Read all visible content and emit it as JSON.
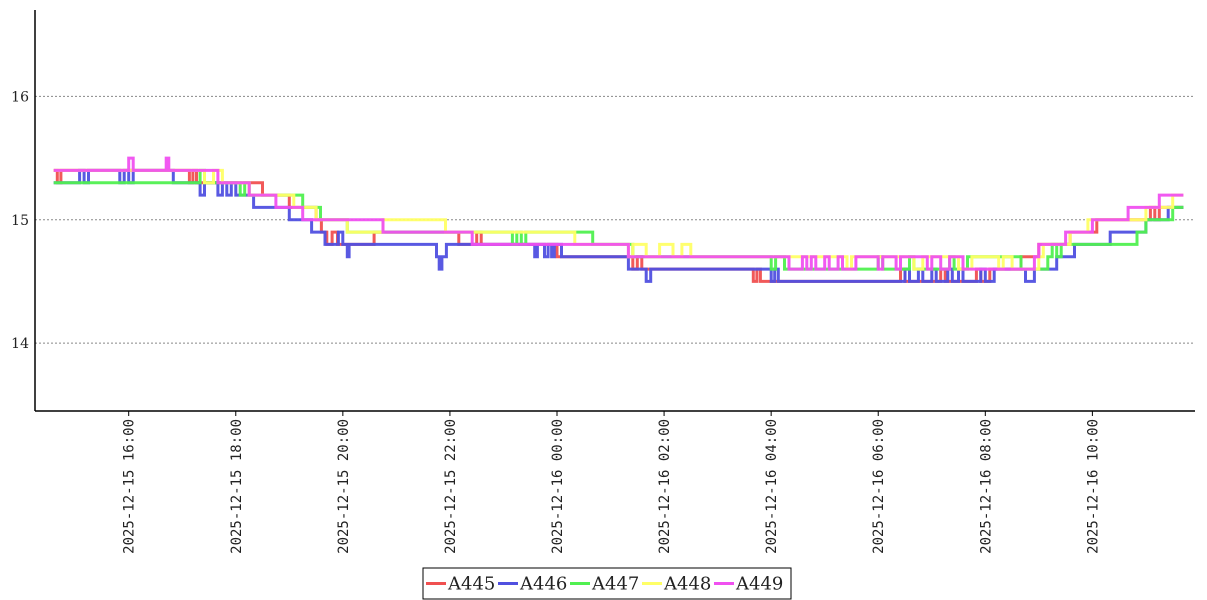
{
  "chart_data": {
    "type": "line",
    "title": "",
    "xlabel": "",
    "ylabel": "",
    "ylim": [
      13.45,
      16.7
    ],
    "xlim": [
      "2025-12-15 14:15",
      "2025-12-16 11:55"
    ],
    "yticks": [
      14,
      15,
      16
    ],
    "y_tick_labels": [
      "14",
      "15",
      "16"
    ],
    "xticks": [
      "2025-12-15 16:00",
      "2025-12-15 18:00",
      "2025-12-15 20:00",
      "2025-12-15 22:00",
      "2025-12-16 00:00",
      "2025-12-16 02:00",
      "2025-12-16 04:00",
      "2025-12-16 06:00",
      "2025-12-16 08:00",
      "2025-12-16 10:00"
    ],
    "x_tick_labels": [
      "2025-12-15 16:00",
      "2025-12-15 18:00",
      "2025-12-15 20:00",
      "2025-12-15 22:00",
      "2025-12-16 00:00",
      "2025-12-16 02:00",
      "2025-12-16 04:00",
      "2025-12-16 06:00",
      "2025-12-16 08:00",
      "2025-12-16 10:00"
    ],
    "grid": "horizontal dotted",
    "legend_position": "bottom-center",
    "line_style": "step",
    "series": [
      {
        "name": "A445",
        "color": "#f05050",
        "points": [
          [
            "2025-12-15 14:36",
            15.4
          ],
          [
            "2025-12-15 14:40",
            15.3
          ],
          [
            "2025-12-15 14:44",
            15.4
          ],
          [
            "2025-12-15 17:08",
            15.3
          ],
          [
            "2025-12-15 17:12",
            15.4
          ],
          [
            "2025-12-15 17:16",
            15.3
          ],
          [
            "2025-12-15 18:30",
            15.2
          ],
          [
            "2025-12-15 19:00",
            15.1
          ],
          [
            "2025-12-15 19:30",
            15.0
          ],
          [
            "2025-12-15 19:36",
            14.9
          ],
          [
            "2025-12-15 19:42",
            14.8
          ],
          [
            "2025-12-15 19:48",
            14.9
          ],
          [
            "2025-12-15 19:54",
            14.8
          ],
          [
            "2025-12-15 20:35",
            14.9
          ],
          [
            "2025-12-15 22:10",
            14.8
          ],
          [
            "2025-12-15 22:30",
            14.9
          ],
          [
            "2025-12-15 22:35",
            14.8
          ],
          [
            "2025-12-16 00:00",
            14.7
          ],
          [
            "2025-12-16 01:25",
            14.6
          ],
          [
            "2025-12-16 01:30",
            14.7
          ],
          [
            "2025-12-16 01:35",
            14.6
          ],
          [
            "2025-12-16 03:40",
            14.5
          ],
          [
            "2025-12-16 03:44",
            14.6
          ],
          [
            "2025-12-16 03:48",
            14.5
          ],
          [
            "2025-12-16 06:25",
            14.6
          ],
          [
            "2025-12-16 06:30",
            14.5
          ],
          [
            "2025-12-16 07:10",
            14.6
          ],
          [
            "2025-12-16 07:15",
            14.5
          ],
          [
            "2025-12-16 07:50",
            14.6
          ],
          [
            "2025-12-16 07:55",
            14.5
          ],
          [
            "2025-12-16 08:05",
            14.6
          ],
          [
            "2025-12-16 08:40",
            14.7
          ],
          [
            "2025-12-16 09:00",
            14.8
          ],
          [
            "2025-12-16 09:35",
            14.9
          ],
          [
            "2025-12-16 10:05",
            15.0
          ],
          [
            "2025-12-16 11:05",
            15.1
          ],
          [
            "2025-12-16 11:10",
            15.0
          ],
          [
            "2025-12-16 11:15",
            15.1
          ],
          [
            "2025-12-16 11:42",
            15.1
          ]
        ]
      },
      {
        "name": "A446",
        "color": "#5050e0",
        "points": [
          [
            "2025-12-15 14:36",
            15.3
          ],
          [
            "2025-12-15 15:05",
            15.4
          ],
          [
            "2025-12-15 15:10",
            15.3
          ],
          [
            "2025-12-15 15:15",
            15.4
          ],
          [
            "2025-12-15 15:50",
            15.3
          ],
          [
            "2025-12-15 15:55",
            15.4
          ],
          [
            "2025-12-15 16:00",
            15.3
          ],
          [
            "2025-12-15 16:05",
            15.4
          ],
          [
            "2025-12-15 16:50",
            15.3
          ],
          [
            "2025-12-15 17:20",
            15.2
          ],
          [
            "2025-12-15 17:25",
            15.3
          ],
          [
            "2025-12-15 17:40",
            15.2
          ],
          [
            "2025-12-15 17:45",
            15.3
          ],
          [
            "2025-12-15 17:50",
            15.2
          ],
          [
            "2025-12-15 17:55",
            15.3
          ],
          [
            "2025-12-15 18:00",
            15.2
          ],
          [
            "2025-12-15 18:20",
            15.1
          ],
          [
            "2025-12-15 18:40",
            15.1
          ],
          [
            "2025-12-15 19:00",
            15.0
          ],
          [
            "2025-12-15 19:25",
            14.9
          ],
          [
            "2025-12-15 19:40",
            14.8
          ],
          [
            "2025-12-15 19:55",
            14.9
          ],
          [
            "2025-12-15 20:00",
            14.8
          ],
          [
            "2025-12-15 20:05",
            14.7
          ],
          [
            "2025-12-15 20:07",
            14.8
          ],
          [
            "2025-12-15 21:40",
            14.8
          ],
          [
            "2025-12-15 21:45",
            14.7
          ],
          [
            "2025-12-15 21:48",
            14.6
          ],
          [
            "2025-12-15 21:51",
            14.7
          ],
          [
            "2025-12-15 21:56",
            14.8
          ],
          [
            "2025-12-15 23:35",
            14.7
          ],
          [
            "2025-12-15 23:38",
            14.8
          ],
          [
            "2025-12-15 23:46",
            14.7
          ],
          [
            "2025-12-15 23:50",
            14.8
          ],
          [
            "2025-12-15 23:54",
            14.7
          ],
          [
            "2025-12-15 23:57",
            14.8
          ],
          [
            "2025-12-16 00:05",
            14.7
          ],
          [
            "2025-12-16 01:20",
            14.6
          ],
          [
            "2025-12-16 01:40",
            14.5
          ],
          [
            "2025-12-16 01:45",
            14.6
          ],
          [
            "2025-12-16 04:00",
            14.5
          ],
          [
            "2025-12-16 04:04",
            14.6
          ],
          [
            "2025-12-16 04:08",
            14.5
          ],
          [
            "2025-12-16 06:30",
            14.6
          ],
          [
            "2025-12-16 06:35",
            14.5
          ],
          [
            "2025-12-16 06:45",
            14.6
          ],
          [
            "2025-12-16 06:50",
            14.5
          ],
          [
            "2025-12-16 07:00",
            14.6
          ],
          [
            "2025-12-16 07:05",
            14.5
          ],
          [
            "2025-12-16 07:18",
            14.6
          ],
          [
            "2025-12-16 07:23",
            14.5
          ],
          [
            "2025-12-16 07:30",
            14.6
          ],
          [
            "2025-12-16 07:35",
            14.5
          ],
          [
            "2025-12-16 07:55",
            14.6
          ],
          [
            "2025-12-16 08:00",
            14.5
          ],
          [
            "2025-12-16 08:10",
            14.6
          ],
          [
            "2025-12-16 08:45",
            14.5
          ],
          [
            "2025-12-16 08:55",
            14.6
          ],
          [
            "2025-12-16 09:20",
            14.7
          ],
          [
            "2025-12-16 09:40",
            14.8
          ],
          [
            "2025-12-16 10:20",
            14.9
          ],
          [
            "2025-12-16 11:00",
            15.0
          ],
          [
            "2025-12-16 11:25",
            15.1
          ],
          [
            "2025-12-16 11:42",
            15.1
          ]
        ]
      },
      {
        "name": "A447",
        "color": "#50f050",
        "points": [
          [
            "2025-12-15 14:36",
            15.3
          ],
          [
            "2025-12-15 17:15",
            15.3
          ],
          [
            "2025-12-15 17:20",
            15.4
          ],
          [
            "2025-12-15 17:25",
            15.3
          ],
          [
            "2025-12-15 18:05",
            15.2
          ],
          [
            "2025-12-15 18:10",
            15.3
          ],
          [
            "2025-12-15 18:15",
            15.2
          ],
          [
            "2025-12-15 19:15",
            15.1
          ],
          [
            "2025-12-15 19:35",
            15.0
          ],
          [
            "2025-12-15 20:05",
            14.9
          ],
          [
            "2025-12-15 23:10",
            14.8
          ],
          [
            "2025-12-15 23:15",
            14.9
          ],
          [
            "2025-12-15 23:20",
            14.8
          ],
          [
            "2025-12-15 23:25",
            14.9
          ],
          [
            "2025-12-16 00:40",
            14.8
          ],
          [
            "2025-12-16 01:25",
            14.7
          ],
          [
            "2025-12-16 04:00",
            14.6
          ],
          [
            "2025-12-16 04:05",
            14.7
          ],
          [
            "2025-12-16 04:15",
            14.6
          ],
          [
            "2025-12-16 06:00",
            14.7
          ],
          [
            "2025-12-16 06:05",
            14.6
          ],
          [
            "2025-12-16 06:35",
            14.7
          ],
          [
            "2025-12-16 06:40",
            14.6
          ],
          [
            "2025-12-16 07:20",
            14.7
          ],
          [
            "2025-12-16 07:25",
            14.6
          ],
          [
            "2025-12-16 07:40",
            14.7
          ],
          [
            "2025-12-16 08:40",
            14.6
          ],
          [
            "2025-12-16 09:10",
            14.7
          ],
          [
            "2025-12-16 09:15",
            14.8
          ],
          [
            "2025-12-16 09:20",
            14.7
          ],
          [
            "2025-12-16 09:25",
            14.8
          ],
          [
            "2025-12-16 10:50",
            14.9
          ],
          [
            "2025-12-16 11:00",
            15.0
          ],
          [
            "2025-12-16 11:30",
            15.1
          ],
          [
            "2025-12-16 11:42",
            15.1
          ]
        ]
      },
      {
        "name": "A448",
        "color": "#ffff66",
        "points": [
          [
            "2025-12-15 14:36",
            15.4
          ],
          [
            "2025-12-15 17:25",
            15.3
          ],
          [
            "2025-12-15 17:35",
            15.4
          ],
          [
            "2025-12-15 17:45",
            15.3
          ],
          [
            "2025-12-15 18:05",
            15.3
          ],
          [
            "2025-12-15 18:15",
            15.2
          ],
          [
            "2025-12-15 19:05",
            15.1
          ],
          [
            "2025-12-15 19:30",
            15.0
          ],
          [
            "2025-12-15 20:05",
            14.9
          ],
          [
            "2025-12-15 20:45",
            15.0
          ],
          [
            "2025-12-15 21:55",
            14.9
          ],
          [
            "2025-12-15 23:30",
            14.9
          ],
          [
            "2025-12-16 00:20",
            14.8
          ],
          [
            "2025-12-16 01:20",
            14.7
          ],
          [
            "2025-12-16 01:25",
            14.8
          ],
          [
            "2025-12-16 01:40",
            14.7
          ],
          [
            "2025-12-16 01:55",
            14.8
          ],
          [
            "2025-12-16 02:10",
            14.7
          ],
          [
            "2025-12-16 02:20",
            14.8
          ],
          [
            "2025-12-16 02:30",
            14.7
          ],
          [
            "2025-12-16 04:20",
            14.7
          ],
          [
            "2025-12-16 05:25",
            14.6
          ],
          [
            "2025-12-16 05:30",
            14.7
          ],
          [
            "2025-12-16 06:40",
            14.6
          ],
          [
            "2025-12-16 06:50",
            14.7
          ],
          [
            "2025-12-16 07:30",
            14.6
          ],
          [
            "2025-12-16 07:45",
            14.7
          ],
          [
            "2025-12-16 08:15",
            14.6
          ],
          [
            "2025-12-16 08:20",
            14.7
          ],
          [
            "2025-12-16 08:30",
            14.6
          ],
          [
            "2025-12-16 09:00",
            14.7
          ],
          [
            "2025-12-16 09:05",
            14.8
          ],
          [
            "2025-12-16 09:35",
            14.9
          ],
          [
            "2025-12-16 09:55",
            15.0
          ],
          [
            "2025-12-16 10:35",
            15.0
          ],
          [
            "2025-12-16 11:00",
            15.1
          ],
          [
            "2025-12-16 11:30",
            15.2
          ],
          [
            "2025-12-16 11:42",
            15.2
          ]
        ]
      },
      {
        "name": "A449",
        "color": "#f050f0",
        "points": [
          [
            "2025-12-15 14:36",
            15.4
          ],
          [
            "2025-12-15 15:55",
            15.4
          ],
          [
            "2025-12-15 16:00",
            15.5
          ],
          [
            "2025-12-15 16:05",
            15.4
          ],
          [
            "2025-12-15 16:40",
            15.4
          ],
          [
            "2025-12-15 16:42",
            15.5
          ],
          [
            "2025-12-15 16:45",
            15.4
          ],
          [
            "2025-12-15 17:40",
            15.3
          ],
          [
            "2025-12-15 18:00",
            15.3
          ],
          [
            "2025-12-15 18:15",
            15.2
          ],
          [
            "2025-12-15 18:45",
            15.1
          ],
          [
            "2025-12-15 19:15",
            15.0
          ],
          [
            "2025-12-15 20:40",
            15.0
          ],
          [
            "2025-12-15 20:45",
            14.9
          ],
          [
            "2025-12-15 21:05",
            14.9
          ],
          [
            "2025-12-15 22:15",
            14.9
          ],
          [
            "2025-12-15 22:25",
            14.8
          ],
          [
            "2025-12-15 23:40",
            14.8
          ],
          [
            "2025-12-16 01:20",
            14.7
          ],
          [
            "2025-12-16 02:30",
            14.7
          ],
          [
            "2025-12-16 04:05",
            14.7
          ],
          [
            "2025-12-16 04:20",
            14.6
          ],
          [
            "2025-12-16 04:35",
            14.7
          ],
          [
            "2025-12-16 04:40",
            14.6
          ],
          [
            "2025-12-16 04:45",
            14.7
          ],
          [
            "2025-12-16 04:50",
            14.6
          ],
          [
            "2025-12-16 05:00",
            14.7
          ],
          [
            "2025-12-16 05:05",
            14.6
          ],
          [
            "2025-12-16 05:15",
            14.7
          ],
          [
            "2025-12-16 05:20",
            14.6
          ],
          [
            "2025-12-16 05:35",
            14.7
          ],
          [
            "2025-12-16 06:00",
            14.6
          ],
          [
            "2025-12-16 06:05",
            14.7
          ],
          [
            "2025-12-16 06:20",
            14.6
          ],
          [
            "2025-12-16 06:25",
            14.7
          ],
          [
            "2025-12-16 06:55",
            14.6
          ],
          [
            "2025-12-16 07:00",
            14.7
          ],
          [
            "2025-12-16 07:10",
            14.6
          ],
          [
            "2025-12-16 07:20",
            14.7
          ],
          [
            "2025-12-16 07:35",
            14.6
          ],
          [
            "2025-12-16 08:10",
            14.6
          ],
          [
            "2025-12-16 08:55",
            14.7
          ],
          [
            "2025-12-16 09:00",
            14.8
          ],
          [
            "2025-12-16 09:20",
            14.8
          ],
          [
            "2025-12-16 09:30",
            14.9
          ],
          [
            "2025-12-16 09:50",
            14.9
          ],
          [
            "2025-12-16 10:00",
            15.0
          ],
          [
            "2025-12-16 10:20",
            15.0
          ],
          [
            "2025-12-16 10:40",
            15.1
          ],
          [
            "2025-12-16 11:15",
            15.2
          ],
          [
            "2025-12-16 11:42",
            15.2
          ]
        ]
      }
    ]
  }
}
